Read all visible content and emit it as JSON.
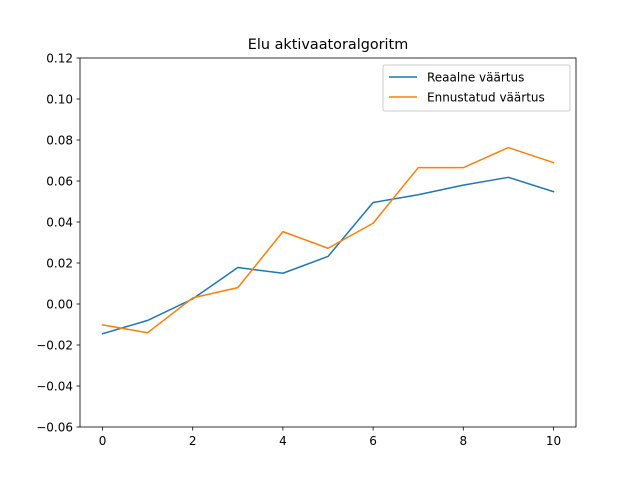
{
  "chart_data": {
    "type": "line",
    "title": "Elu aktivaatoralgoritm",
    "xlabel": "",
    "ylabel": "",
    "x": [
      0,
      1,
      2,
      3,
      4,
      5,
      6,
      7,
      8,
      9,
      10
    ],
    "xlim": [
      -0.5,
      10.5
    ],
    "ylim": [
      -0.06,
      0.12
    ],
    "x_ticks": [
      "0",
      "2",
      "4",
      "6",
      "8",
      "10"
    ],
    "y_ticks": [
      "−0.06",
      "−0.04",
      "−0.02",
      "0.00",
      "0.02",
      "0.04",
      "0.06",
      "0.08",
      "0.10",
      "0.12"
    ],
    "grid": false,
    "legend_position": "top-right",
    "series": [
      {
        "name": "Reaalne väärtus",
        "color": "#1f77b4",
        "values": [
          -0.0145,
          -0.008,
          0.0025,
          0.0178,
          0.015,
          0.0232,
          0.0495,
          0.0533,
          0.058,
          0.0618,
          0.0548
        ]
      },
      {
        "name": "Ennustatud väärtus",
        "color": "#ff7f0e",
        "values": [
          -0.0102,
          -0.014,
          0.003,
          0.008,
          0.0353,
          0.0272,
          0.0394,
          0.0665,
          0.0665,
          0.0763,
          0.069
        ]
      }
    ]
  }
}
